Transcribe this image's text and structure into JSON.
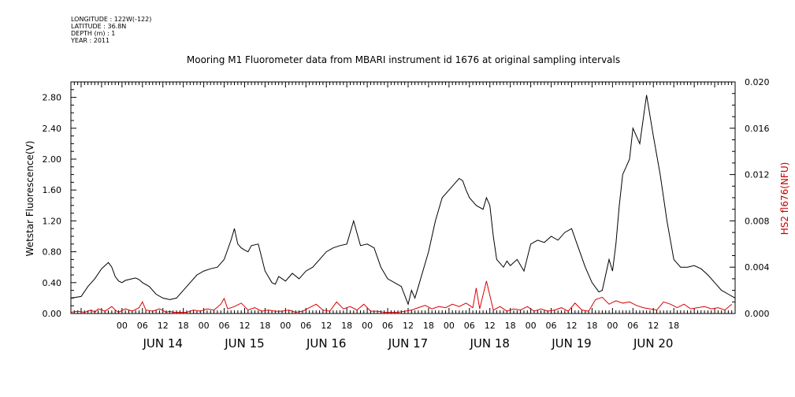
{
  "meta": {
    "longitude": "LONGITUDE : 122W(-122)",
    "latitude": "LATITUDE : 36.8N",
    "depth": "DEPTH (m) : 1",
    "year": "YEAR : 2011"
  },
  "colors": {
    "series1": "#000000",
    "series2": "#dd0000",
    "axis": "#000000"
  },
  "chart_data": {
    "type": "line",
    "title": "Mooring M1 Fluorometer data from MBARI instrument id 1676 at original sampling intervals",
    "xlabel": "",
    "ylabel": "Wetstar Fluorescence(V)",
    "y2label": "HS2 fl676(NFU)",
    "x_unit": "hours since JUN 14 00:00, 2011",
    "xlim": [
      -15,
      180
    ],
    "ylim": [
      0,
      3.0
    ],
    "y2lim": [
      0,
      0.02
    ],
    "yticks": [
      0.0,
      0.4,
      0.8,
      1.2,
      1.6,
      2.0,
      2.4,
      2.8
    ],
    "ytick_labels": [
      "0.00",
      "0.40",
      "0.80",
      "1.20",
      "1.60",
      "2.00",
      "2.40",
      "2.80"
    ],
    "y2ticks": [
      0.0,
      0.004,
      0.008,
      0.012,
      0.016,
      0.02
    ],
    "y2tick_labels": [
      "0.000",
      "0.004",
      "0.008",
      "0.012",
      "0.016",
      "0.020"
    ],
    "xtick_hours": [
      0,
      6,
      12,
      18
    ],
    "xtick_labels": [
      "00",
      "06",
      "12",
      "18"
    ],
    "day_labels": [
      "JUN 14",
      "JUN 15",
      "JUN 16",
      "JUN 17",
      "JUN 18",
      "JUN 19",
      "JUN 20"
    ],
    "grid": false,
    "legend": "none",
    "series": [
      {
        "axis": "left",
        "x": [
          -15,
          -12,
          -10,
          -8,
          -6,
          -5,
          -4,
          -3,
          -2,
          -1,
          0,
          1,
          2,
          3,
          4,
          5,
          6,
          8,
          10,
          12,
          14,
          16,
          18,
          20,
          22,
          24,
          26,
          28,
          30,
          32,
          33,
          34,
          35,
          36,
          37,
          38,
          40,
          42,
          44,
          45,
          46,
          48,
          50,
          52,
          54,
          56,
          58,
          60,
          62,
          64,
          66,
          68,
          70,
          72,
          74,
          76,
          78,
          80,
          82,
          84,
          85,
          86,
          87,
          88,
          90,
          92,
          94,
          96,
          98,
          99,
          100,
          101,
          102,
          104,
          106,
          107,
          108,
          109,
          110,
          111,
          112,
          113,
          114,
          116,
          118,
          120,
          122,
          124,
          126,
          128,
          130,
          132,
          134,
          136,
          138,
          140,
          141,
          142,
          143,
          144,
          145,
          146,
          147,
          148,
          149,
          150,
          152,
          154,
          156,
          158,
          160,
          162,
          164,
          166,
          168,
          170,
          172,
          174,
          176,
          178,
          180
        ],
        "y": [
          0.2,
          0.22,
          0.35,
          0.45,
          0.58,
          0.62,
          0.66,
          0.6,
          0.48,
          0.42,
          0.4,
          0.43,
          0.44,
          0.45,
          0.46,
          0.44,
          0.4,
          0.35,
          0.25,
          0.2,
          0.18,
          0.2,
          0.3,
          0.4,
          0.5,
          0.55,
          0.58,
          0.6,
          0.7,
          0.95,
          1.1,
          0.9,
          0.85,
          0.82,
          0.8,
          0.88,
          0.9,
          0.55,
          0.4,
          0.38,
          0.48,
          0.42,
          0.52,
          0.45,
          0.55,
          0.6,
          0.7,
          0.8,
          0.85,
          0.88,
          0.9,
          1.2,
          0.88,
          0.9,
          0.85,
          0.6,
          0.45,
          0.4,
          0.35,
          0.12,
          0.3,
          0.2,
          0.35,
          0.5,
          0.8,
          1.2,
          1.5,
          1.6,
          1.7,
          1.75,
          1.72,
          1.6,
          1.5,
          1.4,
          1.35,
          1.5,
          1.4,
          1.0,
          0.7,
          0.65,
          0.6,
          0.68,
          0.62,
          0.7,
          0.55,
          0.9,
          0.95,
          0.92,
          1.0,
          0.95,
          1.05,
          1.1,
          0.85,
          0.6,
          0.4,
          0.28,
          0.3,
          0.5,
          0.7,
          0.55,
          0.9,
          1.4,
          1.8,
          1.9,
          2.0,
          2.4,
          2.2,
          2.83,
          2.3,
          1.8,
          1.2,
          0.7,
          0.6,
          0.6,
          0.62,
          0.58,
          0.5,
          0.4,
          0.3,
          0.25,
          0.2
        ]
      },
      {
        "axis": "right",
        "x": [
          -15,
          -13,
          -11,
          -9,
          -8,
          -7,
          -5,
          -3,
          -2,
          -1,
          1,
          3,
          5,
          6,
          7,
          9,
          11,
          13,
          14,
          15,
          17,
          19,
          21,
          23,
          25,
          27,
          29,
          30,
          31,
          33,
          35,
          37,
          39,
          41,
          43,
          45,
          47,
          49,
          51,
          53,
          55,
          57,
          59,
          61,
          63,
          65,
          67,
          69,
          71,
          73,
          75,
          77,
          79,
          81,
          83,
          85,
          87,
          89,
          91,
          93,
          95,
          97,
          99,
          101,
          103,
          104,
          105,
          107,
          109,
          111,
          113,
          115,
          117,
          119,
          121,
          123,
          125,
          127,
          129,
          131,
          133,
          135,
          137,
          139,
          141,
          143,
          145,
          147,
          149,
          151,
          153,
          155,
          157,
          159,
          161,
          163,
          165,
          167,
          169,
          171,
          173,
          175,
          177,
          179
        ],
        "y": [
          0.0001,
          0.0002,
          0.0001,
          0.0003,
          0.0001,
          0.0004,
          0.0002,
          0.0006,
          0.0003,
          0.0001,
          0.0004,
          0.0002,
          0.0005,
          0.001,
          0.0003,
          0.0002,
          0.0004,
          0.0001,
          0.0002,
          0.0001,
          0.0001,
          0.0001,
          0.0003,
          0.0002,
          0.0004,
          0.0003,
          0.0008,
          0.0013,
          0.0004,
          0.0006,
          0.0009,
          0.0003,
          0.0005,
          0.0002,
          0.0003,
          0.0002,
          0.0002,
          0.0003,
          0.0001,
          0.0002,
          0.0005,
          0.0008,
          0.0003,
          0.0002,
          0.001,
          0.0004,
          0.0006,
          0.0003,
          0.0008,
          0.0002,
          0.0002,
          0.0001,
          0.0001,
          0.0001,
          0.0002,
          0.0003,
          0.0005,
          0.0007,
          0.0004,
          0.0006,
          0.0005,
          0.0008,
          0.0006,
          0.0009,
          0.0005,
          0.0022,
          0.0004,
          0.0028,
          0.0003,
          0.0006,
          0.0002,
          0.0004,
          0.0003,
          0.0006,
          0.0002,
          0.0004,
          0.0002,
          0.0003,
          0.0005,
          0.0002,
          0.0009,
          0.0003,
          0.0002,
          0.0012,
          0.0014,
          0.0008,
          0.0011,
          0.0009,
          0.001,
          0.0007,
          0.0005,
          0.0004,
          0.0003,
          0.001,
          0.0008,
          0.0005,
          0.0008,
          0.0004,
          0.0005,
          0.0006,
          0.0004,
          0.0005,
          0.0003,
          0.0008
        ]
      }
    ]
  }
}
